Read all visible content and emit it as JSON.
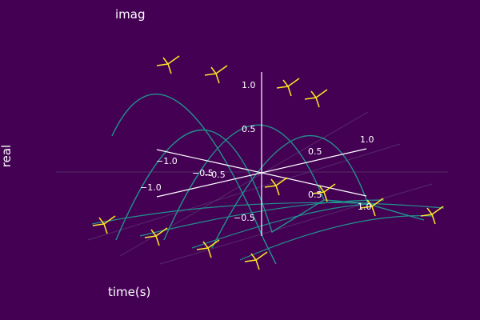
{
  "chart_data": {
    "type": "line",
    "title": "",
    "axis_labels": {
      "x": "time(s)",
      "y": "imag",
      "z": "real"
    },
    "axes_3d": {
      "x_ticks": [
        "−1.0",
        "−0.5",
        "0.5",
        "1.0"
      ],
      "y_ticks": [
        "−1.0",
        "−0.5",
        "0.5",
        "1.0"
      ],
      "z_ticks": [
        "1.0",
        "0.5",
        "−0.5"
      ]
    },
    "grid": true,
    "legend": "none",
    "series": [
      {
        "curve": "arc",
        "count": 4,
        "color": "#21918c"
      },
      {
        "curve": "quiver",
        "color": "#fde725"
      }
    ],
    "colors": {
      "background": "#440154",
      "curve": "#21918c",
      "quiver": "#fde725",
      "axis": "#ffffff",
      "grid": "#5e3a72"
    }
  }
}
